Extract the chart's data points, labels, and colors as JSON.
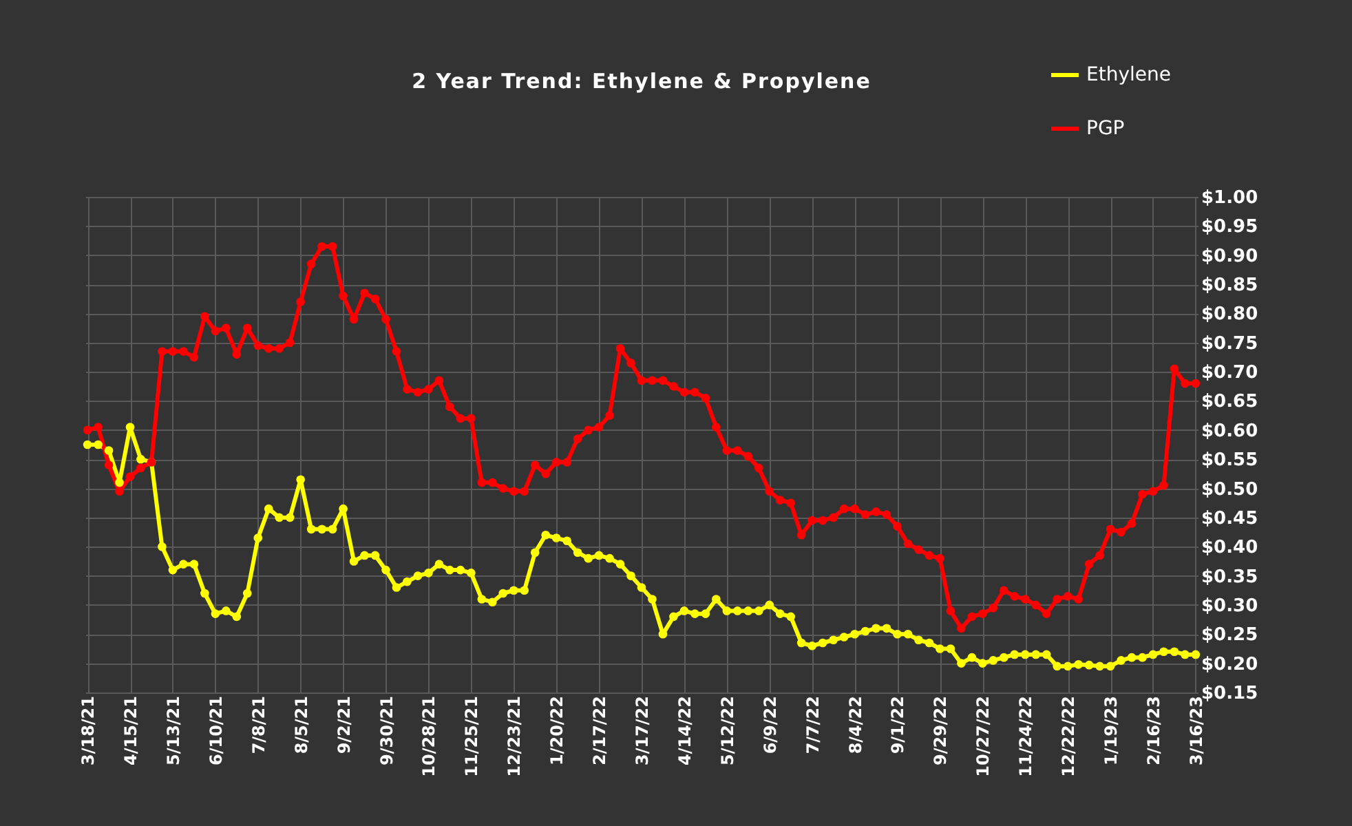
{
  "chart_data": {
    "type": "line",
    "subtitle": "2 Year Trend: Ethylene & Propylene",
    "categories": [
      "3/18/21",
      null,
      null,
      null,
      "4/15/21",
      null,
      null,
      null,
      "5/13/21",
      null,
      null,
      null,
      "6/10/21",
      null,
      null,
      null,
      "7/8/21",
      null,
      null,
      null,
      "8/5/21",
      null,
      null,
      null,
      "9/2/21",
      null,
      null,
      null,
      "9/30/21",
      null,
      null,
      null,
      "10/28/21",
      null,
      null,
      null,
      "11/25/21",
      null,
      null,
      null,
      "12/23/21",
      null,
      null,
      null,
      "1/20/22",
      null,
      null,
      null,
      "2/17/22",
      null,
      null,
      null,
      "3/17/22",
      null,
      null,
      null,
      "4/14/22",
      null,
      null,
      null,
      "5/12/22",
      null,
      null,
      null,
      "6/9/22",
      null,
      null,
      null,
      "7/7/22",
      null,
      null,
      null,
      "8/4/22",
      null,
      null,
      null,
      "9/1/22",
      null,
      null,
      null,
      "9/29/22",
      null,
      null,
      null,
      "10/27/22",
      null,
      null,
      null,
      "11/24/22",
      null,
      null,
      null,
      "12/22/22",
      null,
      null,
      null,
      "1/19/23",
      null,
      null,
      null,
      "2/16/23",
      null,
      null,
      null,
      "3/16/23"
    ],
    "series": [
      {
        "name": "Ethylene",
        "color": "#ffff00",
        "values": [
          0.575,
          0.575,
          0.565,
          0.51,
          0.605,
          0.55,
          0.545,
          0.4,
          0.36,
          0.37,
          0.37,
          0.32,
          0.285,
          0.29,
          0.28,
          0.32,
          0.415,
          0.465,
          0.45,
          0.45,
          0.515,
          0.43,
          0.43,
          0.43,
          0.465,
          0.375,
          0.385,
          0.385,
          0.36,
          0.33,
          0.34,
          0.35,
          0.355,
          0.37,
          0.36,
          0.36,
          0.355,
          0.31,
          0.305,
          0.32,
          0.325,
          0.325,
          0.39,
          0.42,
          0.415,
          0.41,
          0.39,
          0.38,
          0.385,
          0.38,
          0.37,
          0.35,
          0.33,
          0.31,
          0.25,
          0.28,
          0.29,
          0.285,
          0.285,
          0.31,
          0.29,
          0.29,
          0.29,
          0.29,
          0.3,
          0.285,
          0.28,
          0.235,
          0.23,
          0.235,
          0.24,
          0.245,
          0.25,
          0.255,
          0.26,
          0.26,
          0.25,
          0.25,
          0.24,
          0.235,
          0.225,
          0.225,
          0.2,
          0.21,
          0.2,
          0.205,
          0.21,
          0.215,
          0.215,
          0.215,
          0.215,
          0.195,
          0.195,
          0.198,
          0.197,
          0.195,
          0.195,
          0.205,
          0.21,
          0.21,
          0.215,
          0.22,
          0.22,
          0.215,
          0.215
        ]
      },
      {
        "name": "PGP",
        "color": "#ff0000",
        "values": [
          0.6,
          0.605,
          0.54,
          0.495,
          0.52,
          0.535,
          0.545,
          0.735,
          0.735,
          0.735,
          0.725,
          0.795,
          0.77,
          0.775,
          0.73,
          0.775,
          0.745,
          0.74,
          0.74,
          0.75,
          0.82,
          0.885,
          0.915,
          0.915,
          0.83,
          0.79,
          0.835,
          0.825,
          0.79,
          0.735,
          0.67,
          0.665,
          0.67,
          0.685,
          0.64,
          0.62,
          0.62,
          0.51,
          0.51,
          0.5,
          0.495,
          0.495,
          0.54,
          0.525,
          0.545,
          0.545,
          0.585,
          0.6,
          0.605,
          0.625,
          0.74,
          0.715,
          0.685,
          0.685,
          0.685,
          0.675,
          0.665,
          0.665,
          0.655,
          0.605,
          0.565,
          0.565,
          0.555,
          0.535,
          0.495,
          0.48,
          0.475,
          0.42,
          0.445,
          0.445,
          0.45,
          0.465,
          0.465,
          0.455,
          0.46,
          0.455,
          0.435,
          0.405,
          0.395,
          0.385,
          0.38,
          0.29,
          0.26,
          0.28,
          0.285,
          0.295,
          0.325,
          0.315,
          0.31,
          0.3,
          0.285,
          0.31,
          0.315,
          0.31,
          0.37,
          0.385,
          0.43,
          0.425,
          0.44,
          0.49,
          0.495,
          0.505,
          0.705,
          0.68,
          0.68
        ]
      }
    ],
    "ylim": [
      0.15,
      1.0
    ],
    "yticks": [
      {
        "value": 0.15,
        "label": "$0.15"
      },
      {
        "value": 0.2,
        "label": "$0.20"
      },
      {
        "value": 0.25,
        "label": "$0.25"
      },
      {
        "value": 0.3,
        "label": "$0.30"
      },
      {
        "value": 0.35,
        "label": "$0.35"
      },
      {
        "value": 0.4,
        "label": "$0.40"
      },
      {
        "value": 0.45,
        "label": "$0.45"
      },
      {
        "value": 0.5,
        "label": "$0.50"
      },
      {
        "value": 0.55,
        "label": "$0.55"
      },
      {
        "value": 0.6,
        "label": "$0.60"
      },
      {
        "value": 0.65,
        "label": "$0.65"
      },
      {
        "value": 0.7,
        "label": "$0.70"
      },
      {
        "value": 0.75,
        "label": "$0.75"
      },
      {
        "value": 0.8,
        "label": "$0.80"
      },
      {
        "value": 0.85,
        "label": "$0.85"
      },
      {
        "value": 0.9,
        "label": "$0.90"
      },
      {
        "value": 0.95,
        "label": "$0.95"
      },
      {
        "value": 1.0,
        "label": "$1.00"
      }
    ],
    "grid": true,
    "legend": "top right",
    "marker": "circle",
    "line_style": "solid"
  }
}
